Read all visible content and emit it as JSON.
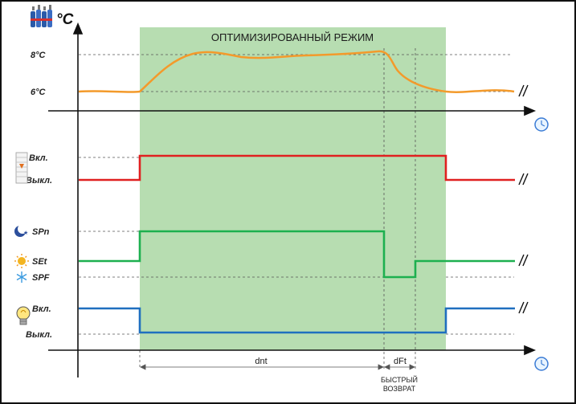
{
  "mode_label": "ОПТИМИЗИРОВАННЫЙ РЕЖИМ",
  "temperature": {
    "unit": "°C",
    "ticks": [
      "8°C",
      "6°C"
    ]
  },
  "lighting_panel": {
    "on": "Вкл.",
    "off": "Выкл."
  },
  "setpoint_panel": {
    "night": "SPn",
    "day": "SEt",
    "fast": "SPF"
  },
  "lamp_panel": {
    "on": "Вкл.",
    "off": "Выкл."
  },
  "intervals": {
    "dnt": "dnt",
    "dft": "dFt",
    "fast_return_line1": "БЫСТРЫЙ",
    "fast_return_line2": "ВОЗВРАТ"
  },
  "colors": {
    "temperature": "#f39a2b",
    "lighting": "#e02020",
    "setpoint": "#1db04f",
    "lamp": "#1f6fbf",
    "mode_band": "#b7ddb1"
  },
  "icons": [
    "bottles-icon",
    "blinds-icon",
    "moon-icon",
    "sun-icon",
    "snowflake-icon",
    "lightbulb-icon",
    "clock-icon"
  ]
}
